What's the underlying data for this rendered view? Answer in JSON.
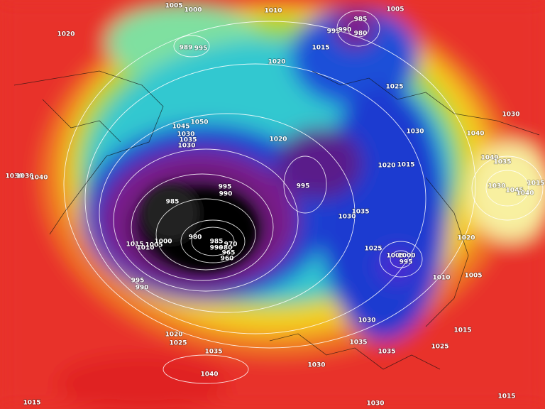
{
  "map": {
    "isobar_labels": [
      1005,
      1000,
      1010,
      985,
      995,
      990,
      980,
      1005,
      1020,
      989,
      995,
      1015,
      1020,
      1025,
      1030,
      1030,
      1040,
      1050,
      1045,
      1030,
      1035,
      1030,
      1020,
      1040,
      1035,
      1020,
      1015,
      1030,
      1030,
      1040,
      1015,
      1030,
      1045,
      1040,
      995,
      990,
      995,
      985,
      1035,
      1030,
      980,
      1020,
      1015,
      1010,
      1005,
      1000,
      985,
      970,
      980,
      990,
      965,
      960,
      1025,
      1005,
      1000,
      995,
      1010,
      1005,
      995,
      990,
      1030,
      1020,
      1025,
      1015,
      1035,
      1035,
      1025,
      1035,
      1030,
      1040,
      1015,
      1030,
      1015
    ]
  }
}
